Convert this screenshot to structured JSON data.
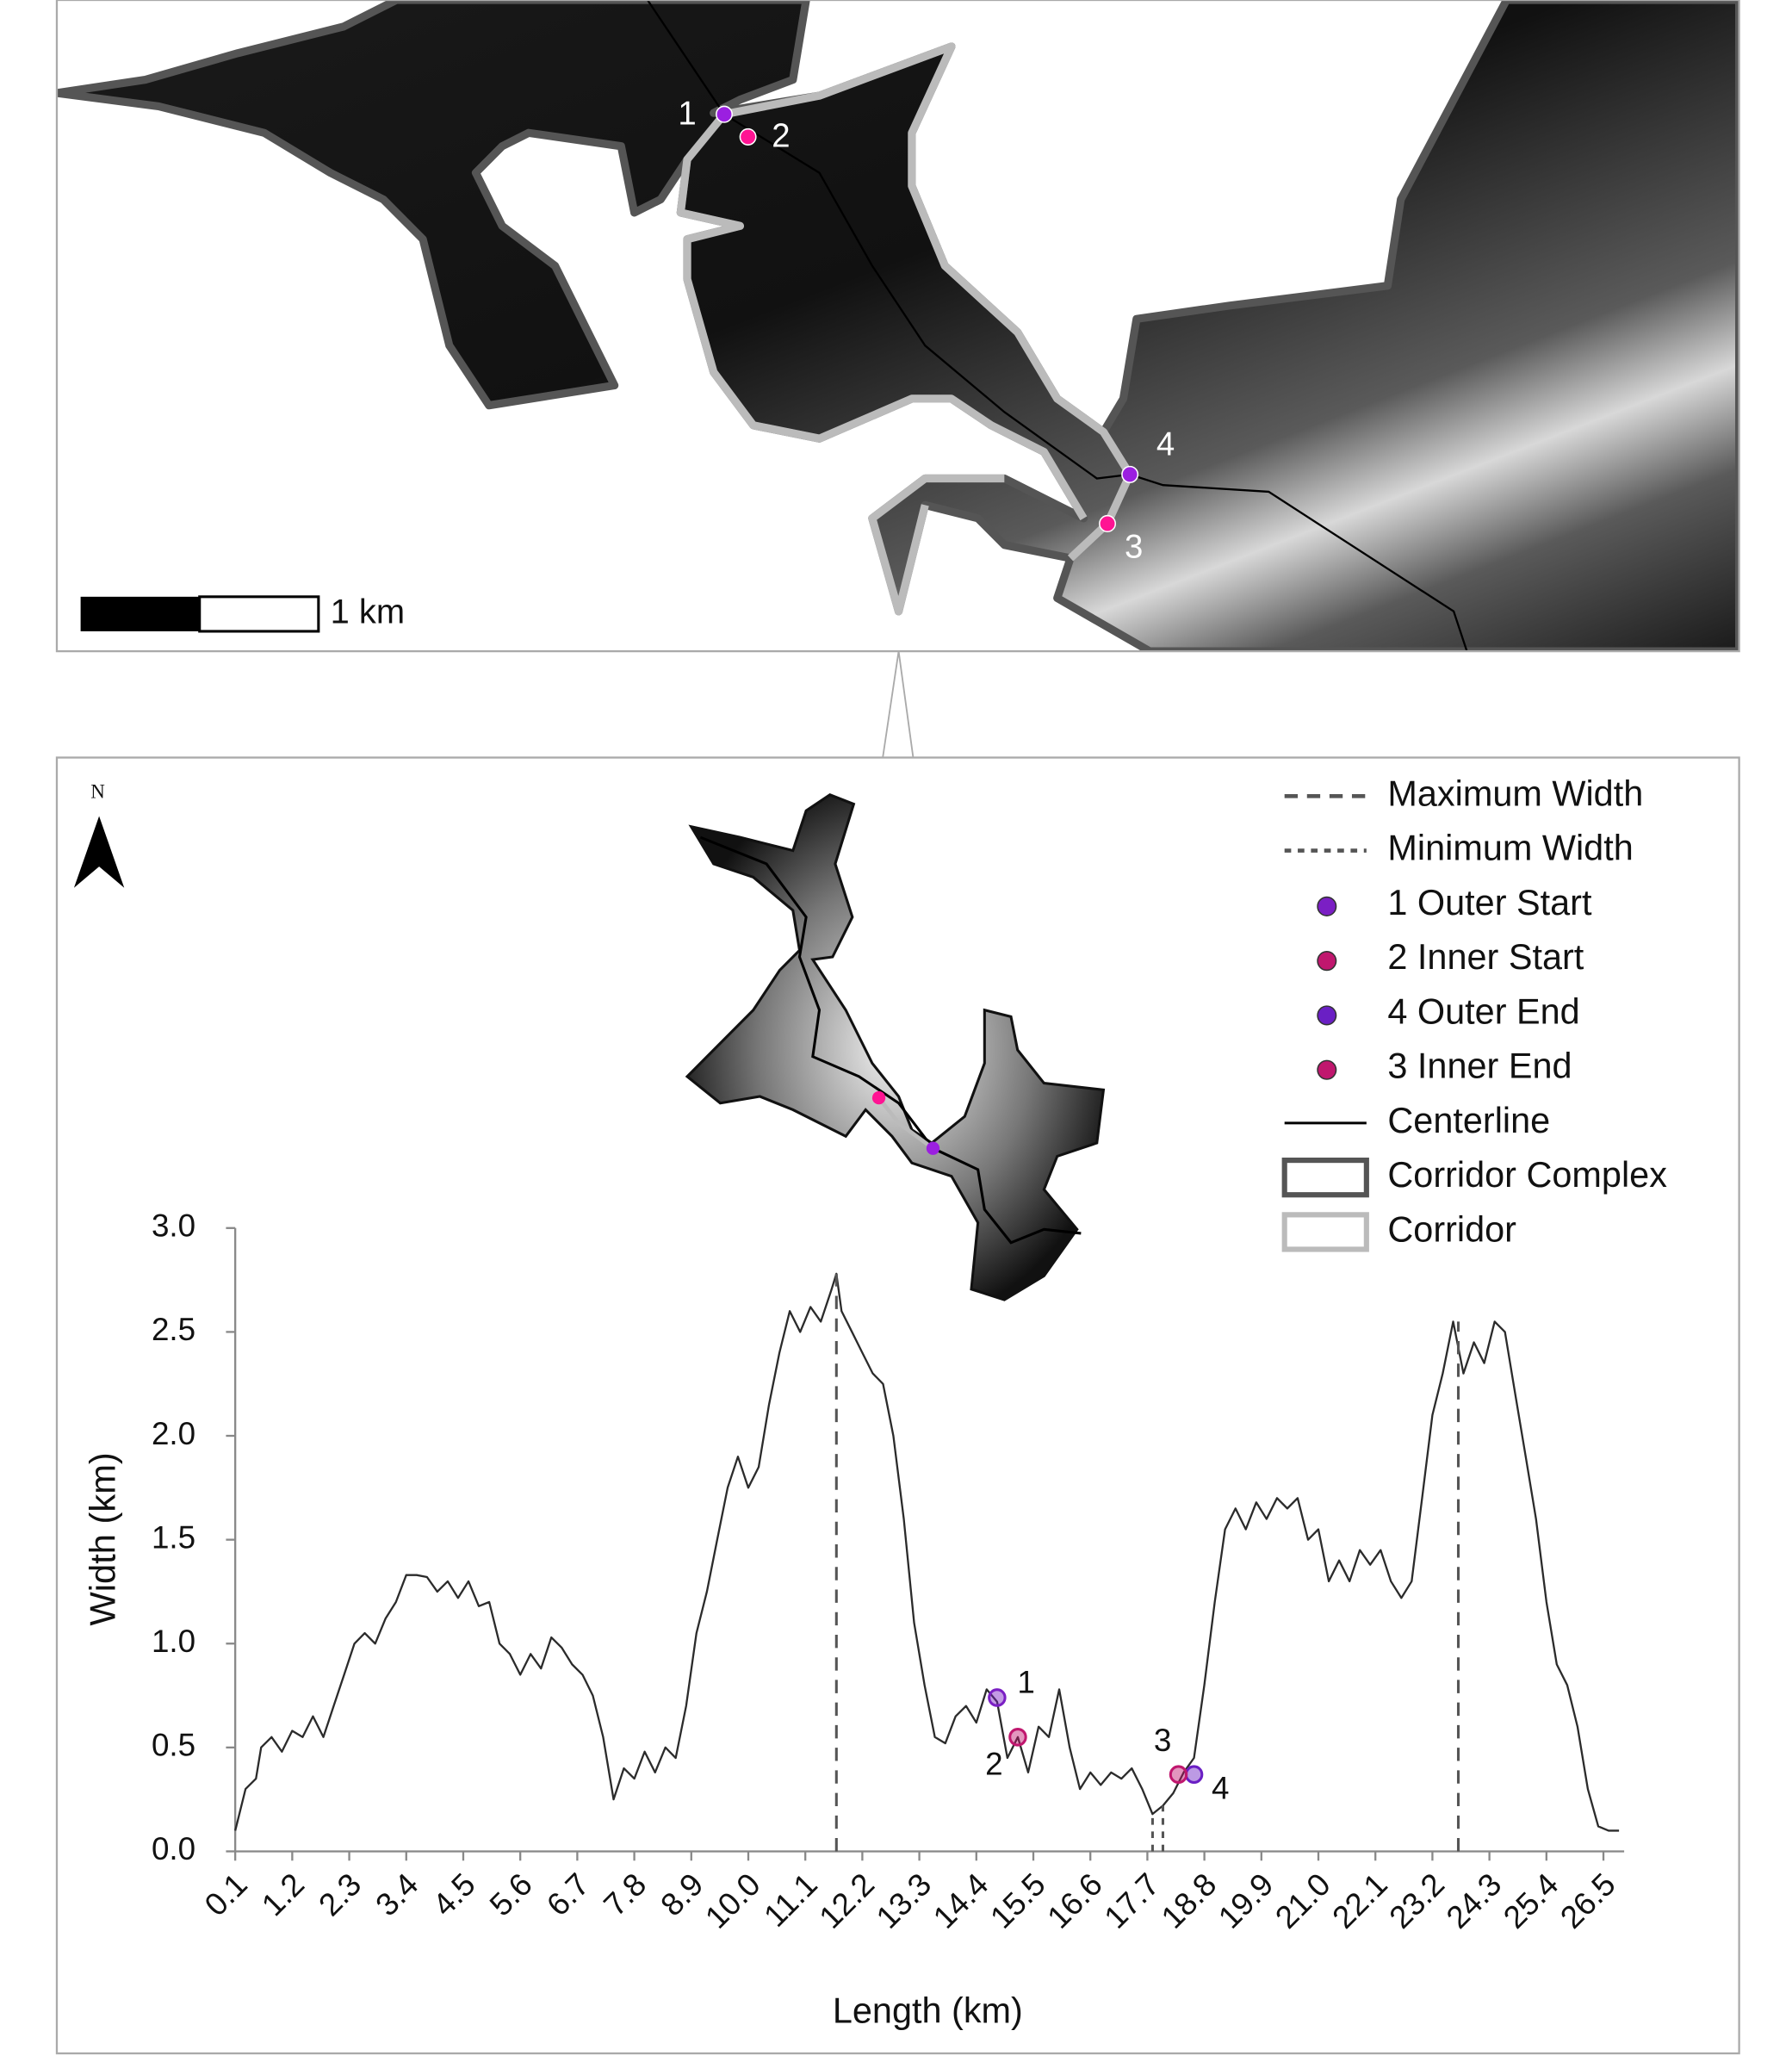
{
  "map": {
    "scale_label": "1 km",
    "point_labels": [
      "1",
      "2",
      "3",
      "4"
    ],
    "north": "N"
  },
  "chart_data": {
    "type": "line",
    "x_label": "Length (km)",
    "y_label": "Width (km)",
    "xlim": [
      0.1,
      26.9
    ],
    "ylim": [
      0,
      3
    ],
    "xticks": [
      0.1,
      1.2,
      2.3,
      3.4,
      4.5,
      5.6,
      6.7,
      7.8,
      8.9,
      {
        "value": 10,
        "label": "10.0"
      },
      11.1,
      12.2,
      13.3,
      14.4,
      15.5,
      16.6,
      17.7,
      18.8,
      19.9,
      {
        "value": 21,
        "label": "21.0"
      },
      22.1,
      23.2,
      24.3,
      25.4,
      26.5
    ],
    "yticks": [
      {
        "value": 0,
        "label": "0.0"
      },
      0.5,
      {
        "value": 1,
        "label": "1.0"
      },
      1.5,
      {
        "value": 2,
        "label": "2.0"
      },
      2.5,
      {
        "value": 3,
        "label": "3.0"
      }
    ],
    "series": [
      {
        "color": "#2b2b2b",
        "x": [
          0.1,
          0.3,
          0.5,
          0.6,
          0.8,
          1.0,
          1.2,
          1.4,
          1.6,
          1.8,
          2.0,
          2.2,
          2.4,
          2.6,
          2.8,
          3.0,
          3.2,
          3.4,
          3.6,
          3.8,
          4.0,
          4.2,
          4.4,
          4.6,
          4.8,
          5.0,
          5.2,
          5.4,
          5.6,
          5.8,
          6.0,
          6.2,
          6.4,
          6.6,
          6.8,
          7.0,
          7.2,
          7.4,
          7.6,
          7.8,
          8.0,
          8.2,
          8.4,
          8.6,
          8.8,
          9.0,
          9.2,
          9.4,
          9.6,
          9.8,
          10.0,
          10.2,
          10.4,
          10.6,
          10.8,
          11.0,
          11.2,
          11.4,
          11.6,
          11.7,
          11.8,
          12.0,
          12.2,
          12.4,
          12.6,
          12.8,
          13.0,
          13.2,
          13.4,
          13.6,
          13.8,
          14.0,
          14.2,
          14.4,
          14.6,
          14.8,
          15.0,
          15.2,
          15.4,
          15.6,
          15.8,
          16.0,
          16.2,
          16.4,
          16.6,
          16.8,
          17.0,
          17.2,
          17.4,
          17.6,
          17.8,
          18.0,
          18.2,
          18.4,
          18.6,
          18.8,
          19.0,
          19.2,
          19.4,
          19.6,
          19.8,
          20.0,
          20.2,
          20.4,
          20.6,
          20.8,
          21.0,
          21.2,
          21.4,
          21.6,
          21.8,
          22.0,
          22.2,
          22.4,
          22.6,
          22.8,
          23.0,
          23.2,
          23.4,
          23.6,
          23.8,
          24.0,
          24.2,
          24.4,
          24.6,
          24.8,
          25.0,
          25.2,
          25.4,
          25.6,
          25.8,
          26.0,
          26.2,
          26.4,
          26.6,
          26.8
        ],
        "values": [
          0.1,
          0.3,
          0.35,
          0.5,
          0.55,
          0.48,
          0.58,
          0.55,
          0.65,
          0.55,
          0.7,
          0.85,
          1.0,
          1.05,
          1.0,
          1.12,
          1.2,
          1.33,
          1.33,
          1.32,
          1.25,
          1.3,
          1.22,
          1.3,
          1.18,
          1.2,
          1.0,
          0.95,
          0.85,
          0.95,
          0.88,
          1.03,
          0.98,
          0.9,
          0.85,
          0.75,
          0.55,
          0.25,
          0.4,
          0.35,
          0.48,
          0.38,
          0.5,
          0.45,
          0.7,
          1.05,
          1.25,
          1.5,
          1.75,
          1.9,
          1.75,
          1.85,
          2.15,
          2.4,
          2.6,
          2.5,
          2.62,
          2.55,
          2.7,
          2.78,
          2.6,
          2.5,
          2.4,
          2.3,
          2.25,
          2.0,
          1.6,
          1.1,
          0.8,
          0.55,
          0.52,
          0.65,
          0.7,
          0.62,
          0.78,
          0.72,
          0.45,
          0.55,
          0.38,
          0.6,
          0.55,
          0.78,
          0.5,
          0.3,
          0.38,
          0.32,
          0.38,
          0.35,
          0.4,
          0.3,
          0.18,
          0.22,
          0.28,
          0.38,
          0.45,
          0.8,
          1.2,
          1.55,
          1.65,
          1.55,
          1.68,
          1.6,
          1.7,
          1.65,
          1.7,
          1.5,
          1.55,
          1.3,
          1.4,
          1.3,
          1.45,
          1.38,
          1.45,
          1.3,
          1.22,
          1.3,
          1.7,
          2.1,
          2.3,
          2.55,
          2.3,
          2.45,
          2.35,
          2.55,
          2.5,
          2.2,
          1.9,
          1.6,
          1.2,
          0.9,
          0.8,
          0.6,
          0.3,
          0.12,
          0.1,
          0.1
        ]
      }
    ],
    "reference_lines": [
      {
        "name": "Maximum Width",
        "color": "#555555",
        "dash": "long",
        "x": [
          11.7,
          23.7
        ],
        "values": [
          2.78,
          2.55
        ]
      },
      {
        "name": "Minimum Width",
        "color": "#555555",
        "dash": "short",
        "x": [
          17.8,
          18.0
        ],
        "values": [
          0.18,
          0.22
        ]
      }
    ],
    "points": [
      {
        "label": "1",
        "name": "1 Outer Start",
        "color": "#7b1fc4",
        "x": 14.8,
        "value": 0.74
      },
      {
        "label": "2",
        "name": "2 Inner Start",
        "color": "#c0176e",
        "x": 15.2,
        "value": 0.55
      },
      {
        "label": "4",
        "name": "4 Outer End",
        "color": "#6a1fc4",
        "x": 18.6,
        "value": 0.37
      },
      {
        "label": "3",
        "name": "3 Inner End",
        "color": "#c0176e",
        "x": 18.3,
        "value": 0.37
      }
    ],
    "legend_extra": [
      {
        "name": "Centerline",
        "color": "#000000",
        "kind": "line"
      },
      {
        "name": "Corridor Complex",
        "color": "#555555",
        "kind": "box"
      },
      {
        "name": "Corridor",
        "color": "#bbbbbb",
        "kind": "box"
      }
    ]
  }
}
